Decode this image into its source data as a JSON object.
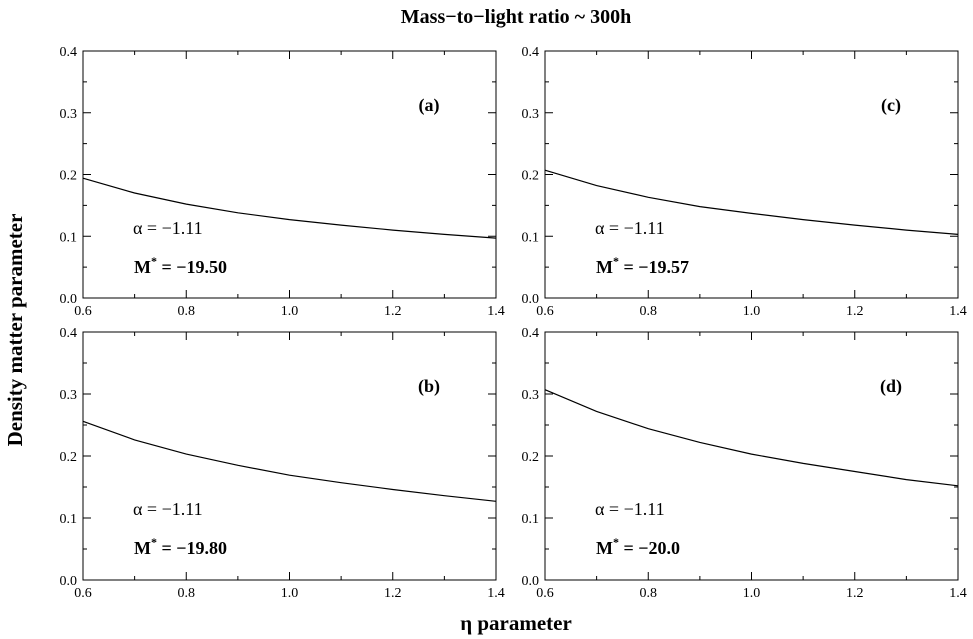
{
  "figure": {
    "title": "Mass−to−light ratio ~ 300h",
    "xlabel": "η parameter",
    "ylabel": "Density matter parameter"
  },
  "chart_data": [
    {
      "type": "line",
      "panel": "(a)",
      "alpha_label": "α = −1.11",
      "mstar_value": "= −19.50",
      "xlim": [
        0.6,
        1.4
      ],
      "ylim": [
        0.0,
        0.4
      ],
      "xticks": [
        "0.6",
        "0.8",
        "1.0",
        "1.2",
        "1.4"
      ],
      "yticks": [
        "0.0",
        "0.1",
        "0.2",
        "0.3",
        "0.4"
      ],
      "series": [
        {
          "x": [
            0.6,
            0.7,
            0.8,
            0.9,
            1.0,
            1.1,
            1.2,
            1.3,
            1.4
          ],
          "y": [
            0.194,
            0.17,
            0.152,
            0.138,
            0.127,
            0.118,
            0.11,
            0.103,
            0.097
          ]
        }
      ]
    },
    {
      "type": "line",
      "panel": "(c)",
      "alpha_label": "α = −1.11",
      "mstar_value": "= −19.57",
      "xlim": [
        0.6,
        1.4
      ],
      "ylim": [
        0.0,
        0.4
      ],
      "xticks": [
        "0.6",
        "0.8",
        "1.0",
        "1.2",
        "1.4"
      ],
      "yticks": [
        "0.0",
        "0.1",
        "0.2",
        "0.3",
        "0.4"
      ],
      "series": [
        {
          "x": [
            0.6,
            0.7,
            0.8,
            0.9,
            1.0,
            1.1,
            1.2,
            1.3,
            1.4
          ],
          "y": [
            0.207,
            0.182,
            0.163,
            0.148,
            0.137,
            0.127,
            0.118,
            0.11,
            0.103
          ]
        }
      ]
    },
    {
      "type": "line",
      "panel": "(b)",
      "alpha_label": "α = −1.11",
      "mstar_value": "= −19.80",
      "xlim": [
        0.6,
        1.4
      ],
      "ylim": [
        0.0,
        0.4
      ],
      "xticks": [
        "0.6",
        "0.8",
        "1.0",
        "1.2",
        "1.4"
      ],
      "yticks": [
        "0.0",
        "0.1",
        "0.2",
        "0.3",
        "0.4"
      ],
      "series": [
        {
          "x": [
            0.6,
            0.7,
            0.8,
            0.9,
            1.0,
            1.1,
            1.2,
            1.3,
            1.4
          ],
          "y": [
            0.256,
            0.226,
            0.203,
            0.185,
            0.169,
            0.157,
            0.146,
            0.136,
            0.127
          ]
        }
      ]
    },
    {
      "type": "line",
      "panel": "(d)",
      "alpha_label": "α = −1.11",
      "mstar_value": "= −20.0",
      "xlim": [
        0.6,
        1.4
      ],
      "ylim": [
        0.0,
        0.4
      ],
      "xticks": [
        "0.6",
        "0.8",
        "1.0",
        "1.2",
        "1.4"
      ],
      "yticks": [
        "0.0",
        "0.1",
        "0.2",
        "0.3",
        "0.4"
      ],
      "series": [
        {
          "x": [
            0.6,
            0.7,
            0.8,
            0.9,
            1.0,
            1.1,
            1.2,
            1.3,
            1.4
          ],
          "y": [
            0.307,
            0.272,
            0.244,
            0.222,
            0.203,
            0.188,
            0.175,
            0.162,
            0.152
          ]
        }
      ]
    }
  ]
}
